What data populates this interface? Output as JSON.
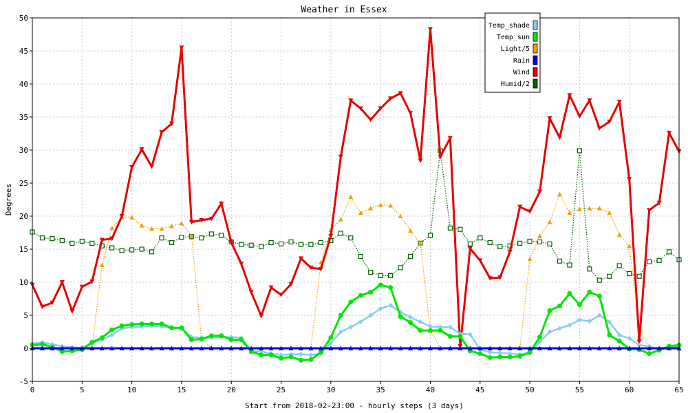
{
  "chart_data": {
    "type": "line",
    "title": "Weather in Essex",
    "xlabel": "Start from 2018-02-23:00 - hourly steps (3 days)",
    "ylabel": "Degrees",
    "xlim": [
      0,
      65
    ],
    "ylim": [
      -5,
      50
    ],
    "xticks": [
      0,
      5,
      10,
      15,
      20,
      25,
      30,
      35,
      40,
      45,
      50,
      55,
      60,
      65
    ],
    "yticks": [
      -5,
      0,
      5,
      10,
      15,
      20,
      25,
      30,
      35,
      40,
      45,
      50
    ],
    "grid": true,
    "legend_position": "top-right",
    "x": [
      0,
      1,
      2,
      3,
      4,
      5,
      6,
      7,
      8,
      9,
      10,
      11,
      12,
      13,
      14,
      15,
      16,
      17,
      18,
      19,
      20,
      21,
      22,
      23,
      24,
      25,
      26,
      27,
      28,
      29,
      30,
      31,
      32,
      33,
      34,
      35,
      36,
      37,
      38,
      39,
      40,
      41,
      42,
      43,
      44,
      45,
      46,
      47,
      48,
      49,
      50,
      51,
      52,
      53,
      54,
      55,
      56,
      57,
      58,
      59,
      60,
      61,
      62,
      63,
      64,
      65
    ],
    "series": [
      {
        "name": "Temp_shade",
        "color": "#87ceeb",
        "marker": "diamond",
        "style": "solid",
        "values": [
          0.7,
          0.9,
          0.6,
          0.3,
          0.1,
          0.1,
          0.8,
          1.3,
          2.0,
          3.0,
          3.2,
          3.3,
          3.4,
          3.3,
          3.1,
          3.0,
          1.7,
          1.6,
          1.6,
          1.7,
          1.7,
          1.6,
          -0.4,
          -0.5,
          -0.8,
          -1.0,
          -0.9,
          -0.9,
          -1.0,
          -0.8,
          0.8,
          2.5,
          3.2,
          4.0,
          5.0,
          6.0,
          6.5,
          5.5,
          4.7,
          4.0,
          3.3,
          3.2,
          3.2,
          2.2,
          2.1,
          -0.2,
          -0.6,
          -0.7,
          -0.8,
          -0.9,
          -0.7,
          1.0,
          2.5,
          3.0,
          3.5,
          4.3,
          4.1,
          5.0,
          4.0,
          2.0,
          1.5,
          0.5,
          0.3,
          -0.2,
          0.2,
          0.2
        ]
      },
      {
        "name": "Temp_sun",
        "color": "#00e600",
        "marker": "circle",
        "style": "solid",
        "values": [
          0.5,
          0.6,
          0.2,
          -0.5,
          -0.4,
          -0.2,
          0.9,
          1.6,
          2.8,
          3.4,
          3.6,
          3.7,
          3.7,
          3.7,
          3.1,
          3.1,
          1.3,
          1.4,
          1.9,
          1.9,
          1.3,
          1.3,
          -0.5,
          -1.0,
          -1.0,
          -1.5,
          -1.3,
          -1.8,
          -1.7,
          -0.6,
          1.6,
          5.0,
          7.0,
          8.0,
          8.5,
          9.6,
          9.2,
          4.8,
          3.9,
          2.7,
          2.7,
          2.7,
          1.8,
          1.8,
          -0.4,
          -0.8,
          -1.4,
          -1.3,
          -1.3,
          -1.2,
          -0.6,
          1.7,
          5.7,
          6.4,
          8.3,
          6.6,
          8.5,
          7.9,
          2.0,
          1.1,
          -0.1,
          -0.2,
          -0.8,
          -0.3,
          0.3,
          0.5
        ]
      },
      {
        "name": "Light/5",
        "color": "#f0a000",
        "marker": "triangle-up",
        "style": "dotted",
        "values": [
          0,
          0,
          0,
          0,
          0,
          0,
          0,
          12.6,
          18.2,
          19.8,
          19.8,
          18.6,
          18.1,
          18.1,
          18.5,
          18.9,
          17.0,
          1.4,
          0,
          0,
          0,
          0,
          0,
          0,
          0,
          0,
          0,
          0,
          0,
          13.0,
          17.9,
          19.5,
          22.9,
          20.5,
          21.2,
          21.7,
          21.6,
          20.0,
          17.8,
          15.8,
          2.7,
          0,
          0,
          0,
          0,
          0,
          0,
          0,
          0,
          0,
          13.5,
          17.0,
          19.1,
          23.3,
          20.5,
          21.1,
          21.2,
          21.2,
          20.5,
          17.2,
          15.5,
          3.4,
          0,
          0,
          0,
          0
        ]
      },
      {
        "name": "Rain",
        "color": "#0000e6",
        "marker": "triangle-up",
        "style": "solid",
        "values": [
          0,
          0,
          0,
          0,
          0,
          0,
          0,
          0,
          0,
          0,
          0,
          0,
          0,
          0,
          0,
          0,
          0,
          0,
          0,
          0,
          0,
          0,
          0,
          0,
          0,
          0,
          0,
          0,
          0,
          0,
          0,
          0,
          0,
          0,
          0,
          0,
          0,
          0,
          0,
          0,
          0,
          0,
          0,
          0,
          0,
          0,
          0,
          0,
          0,
          0,
          0,
          0,
          0,
          0,
          0,
          0,
          0,
          0,
          0,
          0,
          0,
          0,
          0,
          0,
          0,
          0
        ]
      },
      {
        "name": "Wind",
        "color": "#e60000",
        "marker": "triangle-down",
        "style": "solid",
        "values": [
          9.6,
          6.3,
          6.9,
          10.0,
          5.6,
          9.3,
          10.1,
          16.4,
          16.6,
          20.0,
          27.4,
          30.1,
          27.5,
          32.7,
          34.0,
          45.5,
          19.1,
          19.4,
          19.6,
          21.9,
          16.0,
          12.8,
          8.5,
          4.9,
          9.2,
          8.1,
          9.7,
          13.6,
          12.2,
          12.0,
          17.0,
          29.0,
          37.5,
          36.3,
          34.6,
          36.3,
          37.8,
          38.6,
          35.6,
          28.4,
          48.3,
          29.0,
          31.8,
          0.3,
          15.1,
          13.3,
          10.6,
          10.7,
          14.6,
          21.4,
          20.7,
          23.7,
          34.8,
          31.9,
          38.3,
          35.1,
          37.5,
          33.3,
          34.3,
          37.3,
          25.6,
          1.0,
          20.9,
          22.0,
          32.6,
          29.8
        ]
      },
      {
        "name": "Humid/2",
        "color": "#006400",
        "marker": "square",
        "style": "dotted",
        "values": [
          17.6,
          16.7,
          16.6,
          16.3,
          15.9,
          16.2,
          15.9,
          15.5,
          15.2,
          14.8,
          14.9,
          15.0,
          14.6,
          16.7,
          16.0,
          16.8,
          16.9,
          16.7,
          17.3,
          17.1,
          16.1,
          15.7,
          15.6,
          15.4,
          16.0,
          15.8,
          16.1,
          15.7,
          15.7,
          16.0,
          16.3,
          17.4,
          16.7,
          13.9,
          11.5,
          11.0,
          11.0,
          12.2,
          13.9,
          15.9,
          17.1,
          29.9,
          18.2,
          18.0,
          15.8,
          16.7,
          16.0,
          15.4,
          15.5,
          15.9,
          16.2,
          16.1,
          15.8,
          13.2,
          12.6,
          29.9,
          12.0,
          10.3,
          10.9,
          12.5,
          11.3,
          10.9,
          13.1,
          13.3,
          14.6,
          13.4
        ]
      }
    ]
  }
}
